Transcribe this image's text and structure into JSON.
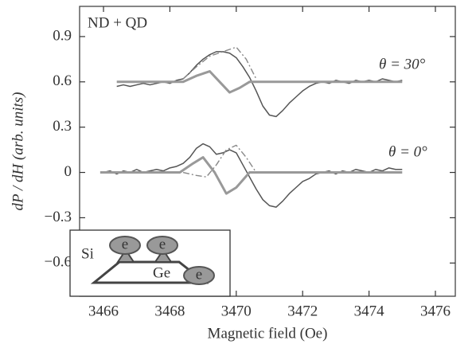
{
  "chart_data": {
    "type": "line",
    "xlabel": "Magnetic field (Oe)",
    "ylabel": "dP / dH (arb. units)",
    "annotations": [
      "ND + QD",
      "θ = 30°",
      "θ = 0°"
    ],
    "inset_labels": [
      "Si",
      "Ge",
      "e",
      "e",
      "e"
    ],
    "xlim": [
      3465.28,
      3476.6
    ],
    "ylim": [
      -0.82,
      1.1
    ],
    "xticks": [
      3466,
      3468,
      3470,
      3472,
      3474,
      3476
    ],
    "yticks": [
      {
        "value": -0.6,
        "label": "−0.6"
      },
      {
        "value": -0.3,
        "label": "−0.3"
      },
      0,
      0.3,
      0.6,
      0.9
    ],
    "series": [
      {
        "color": "#555555",
        "style": "solid",
        "x": [
          3466.4,
          3466.6,
          3466.8,
          3467.0,
          3467.2,
          3467.4,
          3467.6,
          3467.8,
          3468.0,
          3468.2,
          3468.4,
          3468.6,
          3468.8,
          3469.0,
          3469.2,
          3469.4,
          3469.6,
          3469.8,
          3470.0,
          3470.2,
          3470.4,
          3470.6,
          3470.8,
          3471.0,
          3471.2,
          3471.4,
          3471.6,
          3471.8,
          3472.0,
          3472.2,
          3472.4,
          3472.6,
          3472.8,
          3473.0,
          3473.2,
          3473.4,
          3473.6,
          3473.8,
          3474.0,
          3474.2,
          3474.4,
          3474.6,
          3474.8,
          3475.0
        ],
        "values": [
          0.57,
          0.58,
          0.57,
          0.58,
          0.59,
          0.58,
          0.59,
          0.6,
          0.59,
          0.61,
          0.62,
          0.66,
          0.71,
          0.75,
          0.78,
          0.8,
          0.8,
          0.79,
          0.76,
          0.7,
          0.63,
          0.54,
          0.44,
          0.38,
          0.37,
          0.41,
          0.46,
          0.5,
          0.54,
          0.57,
          0.59,
          0.6,
          0.59,
          0.61,
          0.6,
          0.59,
          0.61,
          0.6,
          0.61,
          0.6,
          0.62,
          0.61,
          0.6,
          0.61
        ]
      },
      {
        "color": "#999999",
        "style": "solid",
        "x": [
          3466.4,
          3468.4,
          3468.8,
          3469.2,
          3469.5,
          3469.8,
          3470.1,
          3470.4,
          3475.0
        ],
        "values": [
          0.6,
          0.6,
          0.64,
          0.67,
          0.6,
          0.53,
          0.56,
          0.6,
          0.6
        ]
      },
      {
        "color": "#888888",
        "style": "dash-dot",
        "x": [
          3468.4,
          3468.8,
          3469.2,
          3469.6,
          3470.0,
          3470.3,
          3470.6
        ],
        "values": [
          0.62,
          0.7,
          0.77,
          0.8,
          0.83,
          0.75,
          0.62
        ]
      },
      {
        "color": "#555555",
        "style": "solid",
        "x": [
          3466.0,
          3466.2,
          3466.4,
          3466.6,
          3466.8,
          3467.0,
          3467.2,
          3467.4,
          3467.6,
          3467.8,
          3468.0,
          3468.2,
          3468.4,
          3468.6,
          3468.8,
          3469.0,
          3469.2,
          3469.4,
          3469.6,
          3469.8,
          3470.0,
          3470.2,
          3470.4,
          3470.6,
          3470.8,
          3471.0,
          3471.2,
          3471.4,
          3471.6,
          3471.8,
          3472.0,
          3472.2,
          3472.4,
          3472.6,
          3472.8,
          3473.0,
          3473.2,
          3473.4,
          3473.6,
          3473.8,
          3474.0,
          3474.2,
          3474.4,
          3474.6,
          3474.8,
          3475.0
        ],
        "values": [
          0.0,
          0.01,
          -0.01,
          0.01,
          0.0,
          0.02,
          0.0,
          0.01,
          0.02,
          0.01,
          0.03,
          0.04,
          0.06,
          0.1,
          0.16,
          0.19,
          0.17,
          0.12,
          0.13,
          0.15,
          0.13,
          0.05,
          -0.03,
          -0.11,
          -0.18,
          -0.22,
          -0.23,
          -0.19,
          -0.14,
          -0.1,
          -0.06,
          -0.04,
          -0.01,
          0.0,
          0.01,
          -0.01,
          0.01,
          0.0,
          0.02,
          0.01,
          0.0,
          0.02,
          0.01,
          0.03,
          0.02,
          0.02
        ]
      },
      {
        "color": "#999999",
        "style": "solid",
        "x": [
          3465.9,
          3468.3,
          3468.7,
          3469.0,
          3469.35,
          3469.7,
          3470.0,
          3470.4,
          3475.0
        ],
        "values": [
          0,
          0,
          0.06,
          0.1,
          0.0,
          -0.14,
          -0.1,
          0,
          0
        ]
      },
      {
        "color": "#888888",
        "style": "dash-dot",
        "x": [
          3468.4,
          3468.8,
          3469.1,
          3469.4,
          3469.7,
          3470.0,
          3470.3,
          3470.6
        ],
        "values": [
          0.0,
          -0.02,
          -0.03,
          0.05,
          0.15,
          0.18,
          0.1,
          0.0
        ]
      }
    ]
  }
}
